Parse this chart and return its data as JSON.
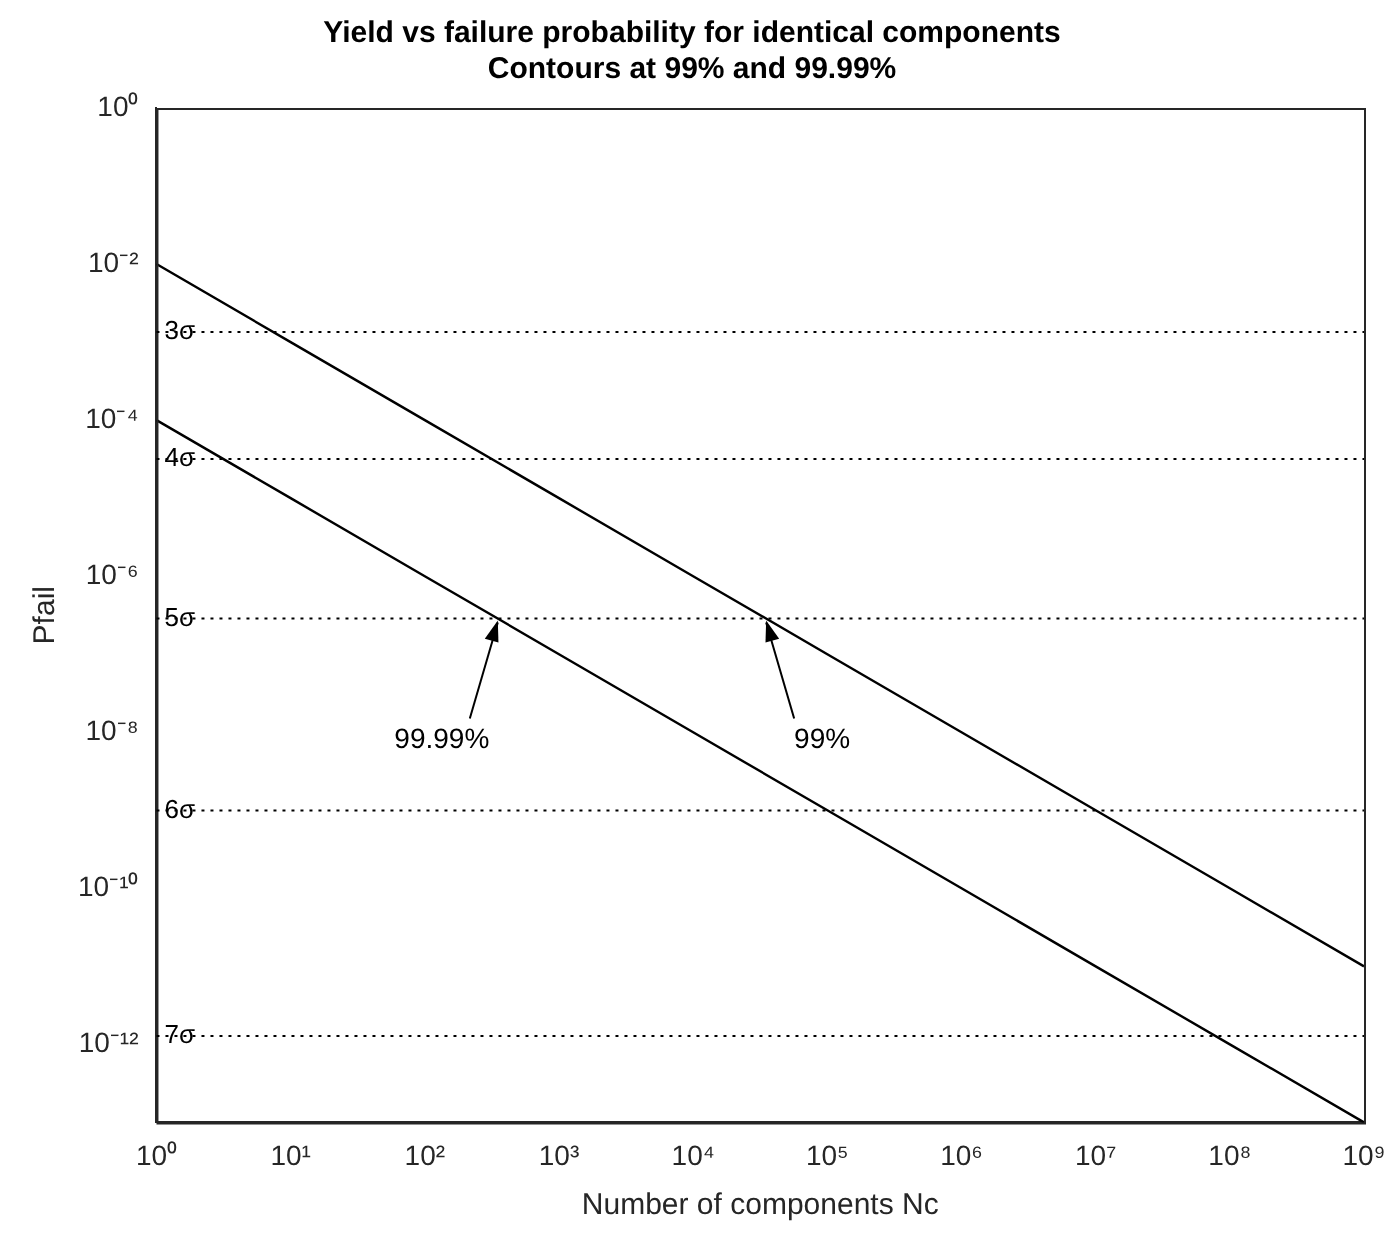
{
  "chart_data": {
    "type": "line",
    "title": "Yield vs failure probability for identical components",
    "subtitle": "Contours at 99% and 99.99%",
    "xlabel": "Number of components Nc",
    "ylabel": "Pfail",
    "log": "xy",
    "grid": false,
    "legend": false,
    "marker": "none",
    "line_style": "solid",
    "xlim": [
      1,
      1000000000
    ],
    "ylim": [
      1e-13,
      1
    ],
    "xticks": [
      {
        "value": 1,
        "label": "10⁰"
      },
      {
        "value": 10,
        "label": "10¹"
      },
      {
        "value": 100,
        "label": "10²"
      },
      {
        "value": 1000,
        "label": "10³"
      },
      {
        "value": 10000,
        "label": "10⁴"
      },
      {
        "value": 100000,
        "label": "10⁵"
      },
      {
        "value": 1000000,
        "label": "10⁶"
      },
      {
        "value": 10000000,
        "label": "10⁷"
      },
      {
        "value": 100000000,
        "label": "10⁸"
      },
      {
        "value": 1000000000,
        "label": "10⁹"
      }
    ],
    "yticks": [
      {
        "value": 1,
        "label": "10⁰"
      },
      {
        "value": 0.01,
        "label": "10⁻²"
      },
      {
        "value": 0.0001,
        "label": "10⁻⁴"
      },
      {
        "value": 1e-06,
        "label": "10⁻⁶"
      },
      {
        "value": 1e-08,
        "label": "10⁻⁸"
      },
      {
        "value": 1e-10,
        "label": "10⁻¹⁰"
      },
      {
        "value": 1e-12,
        "label": "10⁻¹²"
      }
    ],
    "series": [
      {
        "color": "#000000",
        "x": [
          1,
          10,
          100,
          1000,
          10000,
          100000,
          1000000,
          10000000,
          100000000,
          1000000000
        ],
        "values": [
          0.01,
          0.001,
          0.0001,
          1e-05,
          1e-06,
          1e-07,
          1e-08,
          1e-09,
          1e-10,
          1e-11
        ]
      },
      {
        "color": "#000000",
        "x": [
          1,
          10,
          100,
          1000,
          10000,
          100000,
          1000000,
          10000000,
          100000000,
          1000000000
        ],
        "values": [
          0.0001,
          1e-05,
          1e-06,
          1e-07,
          1e-08,
          1e-09,
          1e-10,
          1e-11,
          1e-12,
          1e-13
        ]
      }
    ],
    "ref_lines": [
      {
        "axis": "y",
        "value": 0.00135,
        "label": "3σ",
        "line_style": "dotted",
        "color": "#000000"
      },
      {
        "axis": "y",
        "value": 3.17e-05,
        "label": "4σ",
        "line_style": "dotted",
        "color": "#000000"
      },
      {
        "axis": "y",
        "value": 2.87e-07,
        "label": "5σ",
        "line_style": "dotted",
        "color": "#000000"
      },
      {
        "axis": "y",
        "value": 9.9e-10,
        "label": "6σ",
        "line_style": "dotted",
        "color": "#000000"
      },
      {
        "axis": "y",
        "value": 1.28e-12,
        "label": "7σ",
        "line_style": "dotted",
        "color": "#000000"
      }
    ],
    "annotations": [
      {
        "text": "99.99%",
        "x": 350,
        "y": 2.87e-07
      },
      {
        "text": "99%",
        "x": 35000,
        "y": 2.87e-07
      }
    ]
  }
}
